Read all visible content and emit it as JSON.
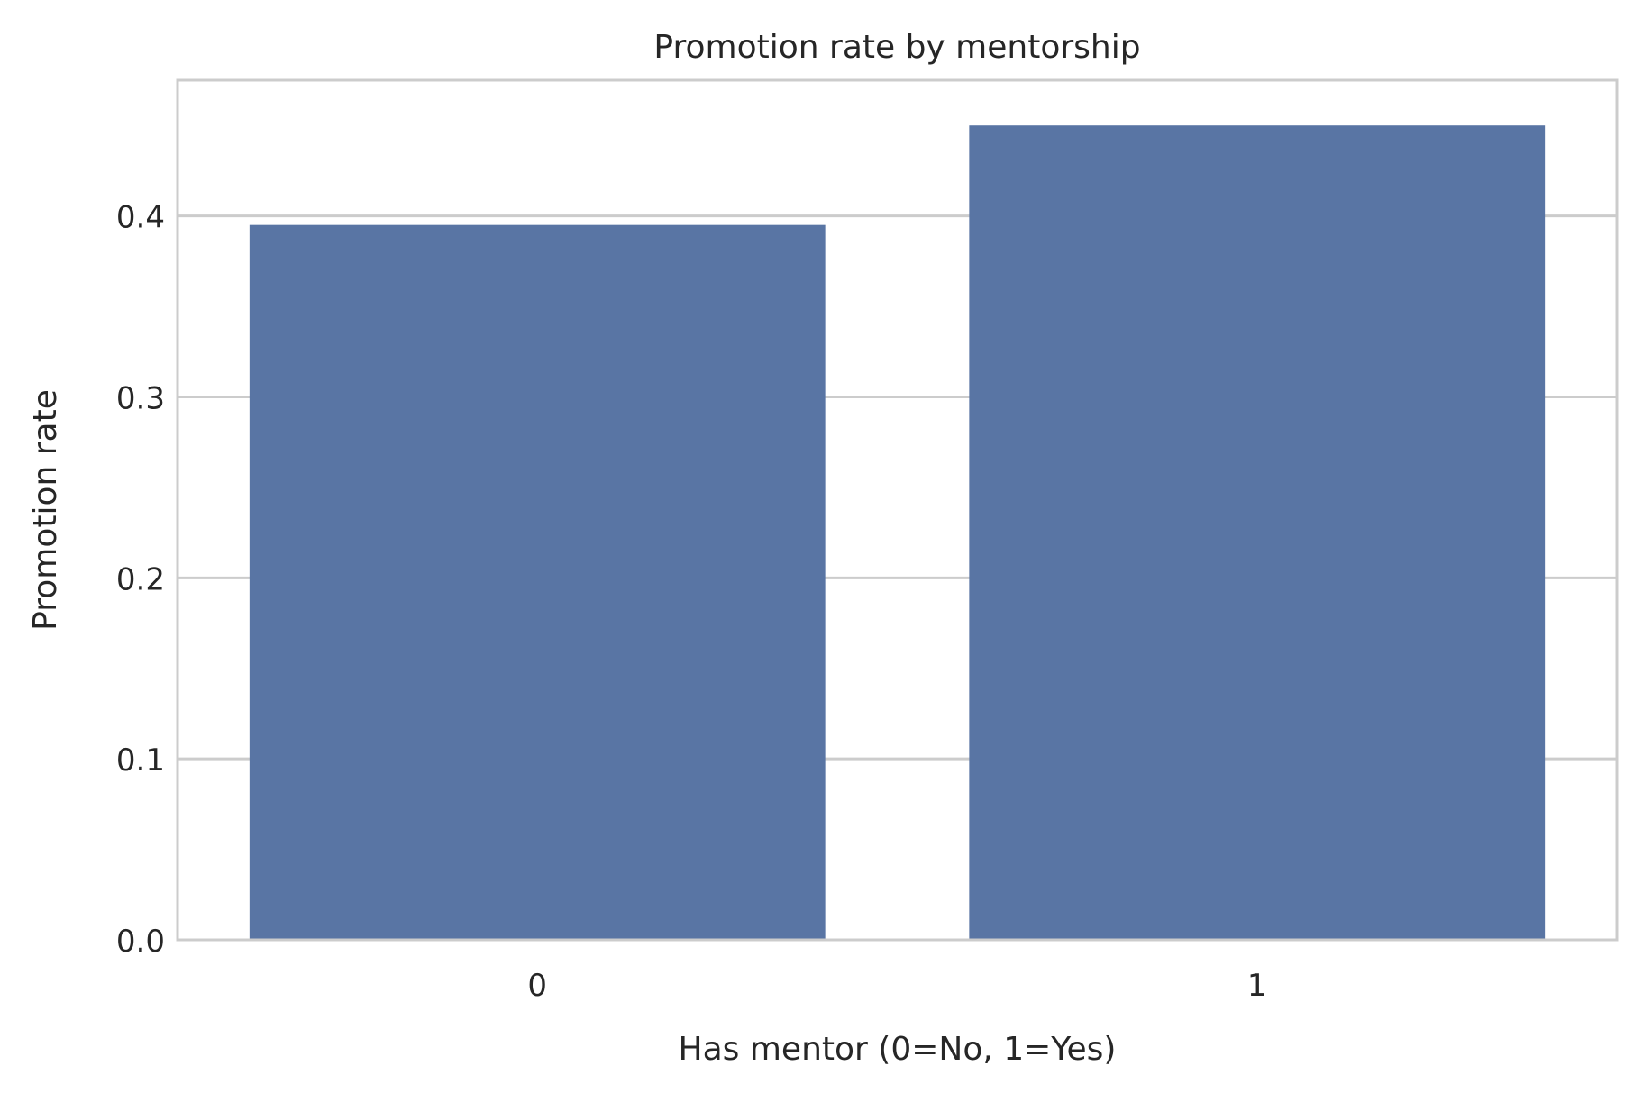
{
  "chart_data": {
    "type": "bar",
    "title": "Promotion rate by mentorship",
    "xlabel": "Has mentor (0=No, 1=Yes)",
    "ylabel": "Promotion rate",
    "categories": [
      "0",
      "1"
    ],
    "values": [
      0.395,
      0.45
    ],
    "ylim": [
      0,
      0.475
    ],
    "yticks": [
      0.0,
      0.1,
      0.2,
      0.3,
      0.4
    ],
    "ytick_labels": [
      "0.0",
      "0.1",
      "0.2",
      "0.3",
      "0.4"
    ],
    "grid": "horizontal",
    "legend": "none",
    "colors": {
      "bar": "#5975a4",
      "grid": "#cccccc",
      "frame": "#cccccc",
      "text": "#262626"
    }
  }
}
